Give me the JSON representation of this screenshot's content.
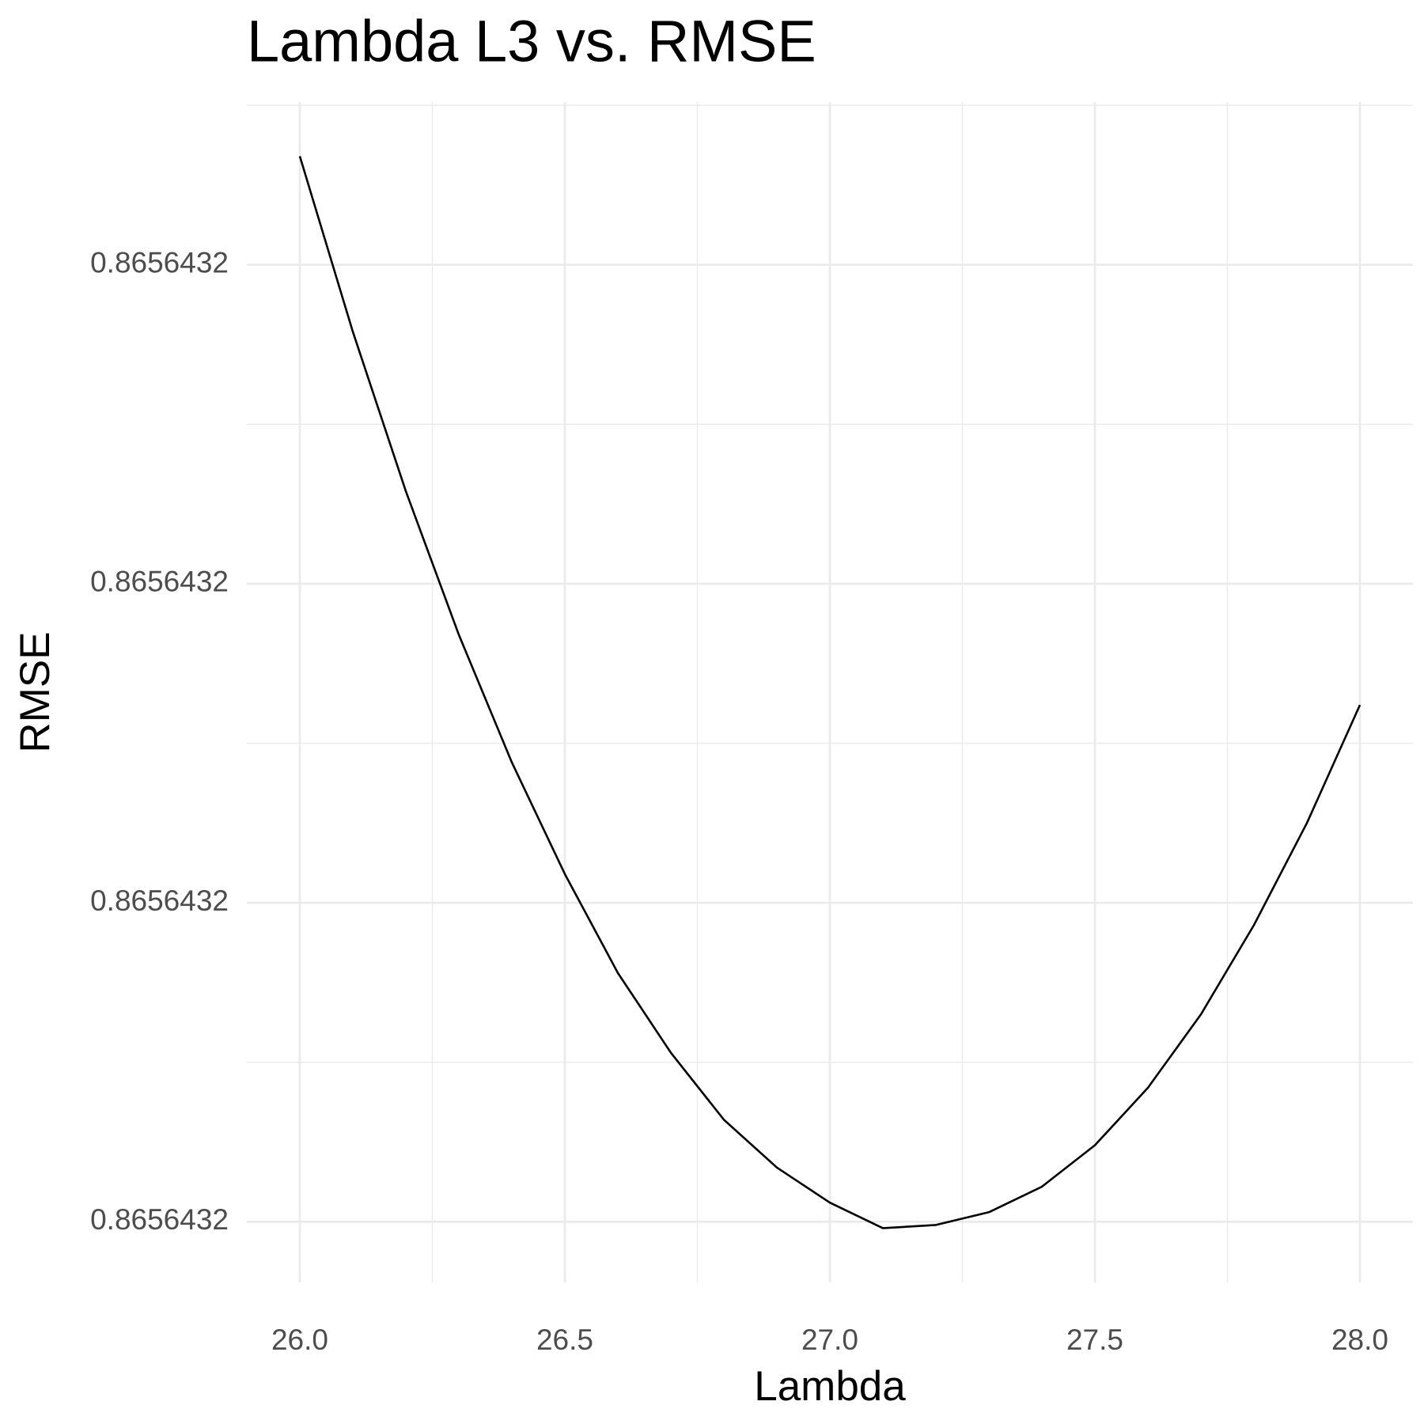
{
  "chart_data": {
    "type": "line",
    "title": "Lambda L3 vs. RMSE",
    "x_label": "Lambda",
    "y_label": "RMSE",
    "x": [
      26.0,
      26.1,
      26.2,
      26.3,
      26.4,
      26.5,
      26.6,
      26.7,
      26.8,
      26.9,
      27.0,
      27.1,
      27.2,
      27.3,
      27.4,
      27.5,
      27.6,
      27.7,
      27.8,
      27.9,
      28.0
    ],
    "series": [
      {
        "color": "#000000",
        "values": [
          0.86564320334,
          0.86564320279,
          0.86564320229,
          0.86564320184,
          0.86564320144,
          0.86564320109,
          0.86564320078,
          0.86564320053,
          0.86564320032,
          0.86564320017,
          0.86564320006,
          0.86564319998,
          0.86564319999,
          0.86564320003,
          0.86564320011,
          0.86564320024,
          0.86564320042,
          0.86564320065,
          0.86564320093,
          0.86564320125,
          0.86564320162
        ]
      }
    ],
    "xlim": [
      25.9,
      28.1
    ],
    "ylim": [
      0.86564319981,
      0.86564320351
    ],
    "xticks": [
      {
        "value": 26,
        "label": "26.0"
      },
      26.5,
      {
        "value": 27,
        "label": "27.0"
      },
      27.5,
      {
        "value": 28,
        "label": "28.0"
      }
    ],
    "yticks": [
      {
        "value": 0.8656432,
        "label": "0.8656432"
      },
      {
        "value": 0.865643201,
        "label": "0.8656432"
      },
      {
        "value": 0.865643202,
        "label": "0.8656432"
      },
      {
        "value": 0.865643203,
        "label": "0.8656432"
      }
    ],
    "x_minor_grid": [
      26.25,
      26.75,
      27.25,
      27.75
    ],
    "y_minor_grid": [
      0.8656432005,
      0.8656432015,
      0.8656432025,
      0.8656432035
    ],
    "grid": true
  }
}
